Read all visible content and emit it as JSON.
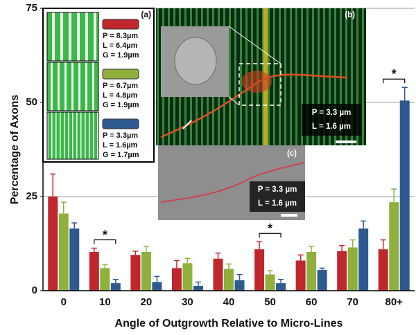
{
  "chart_data": {
    "type": "bar",
    "x_label": "Angle of Outgrowth Relative to Micro-Lines",
    "y_label": "Percentage of Axons",
    "categories": [
      "0",
      "10",
      "20",
      "30",
      "40",
      "50",
      "60",
      "70",
      "80+"
    ],
    "series": [
      {
        "name": "P = 8.3µm",
        "details": [
          "L = 6.4µm",
          "G = 1.9µm"
        ],
        "color": "#c0272d",
        "values": [
          25,
          10.3,
          9.5,
          6,
          8.5,
          11,
          8,
          10.5,
          11
        ],
        "errors": [
          6,
          1,
          1,
          2,
          1.5,
          2,
          1.5,
          1.5,
          2.5
        ]
      },
      {
        "name": "P = 6.7µm",
        "details": [
          "L = 4.8µm",
          "G = 1.9µm"
        ],
        "color": "#8fb03c",
        "values": [
          20.5,
          6,
          10.3,
          7.3,
          5.8,
          4.3,
          10.3,
          11.5,
          23.5
        ],
        "errors": [
          3,
          1,
          1.5,
          1.3,
          1.3,
          1,
          1.5,
          2,
          3.5
        ]
      },
      {
        "name": "P = 3.3µm",
        "details": [
          "L = 1.6µm",
          "G = 1.7µm"
        ],
        "color": "#2f5a8f",
        "values": [
          16.5,
          2,
          2.3,
          1.3,
          2.8,
          2,
          5.5,
          16.5,
          50.5
        ],
        "errors": [
          1.5,
          1,
          1.5,
          1,
          1.5,
          1,
          0.5,
          2,
          3.5
        ]
      }
    ],
    "ylim": [
      0,
      75
    ],
    "yticks": [
      0,
      25,
      50,
      75
    ],
    "grid": true,
    "significance": [
      {
        "category": "10",
        "label": "*"
      },
      {
        "category": "50",
        "label": "*"
      },
      {
        "category": "80+",
        "label": "*"
      }
    ],
    "panels": {
      "a": "(a)",
      "b": "(b)",
      "c": "(c)",
      "b_text": [
        "P = 3.3 µm",
        "L = 1.6 µm"
      ],
      "c_text": [
        "P = 3.3 µm",
        "L = 1.6 µm"
      ]
    }
  }
}
